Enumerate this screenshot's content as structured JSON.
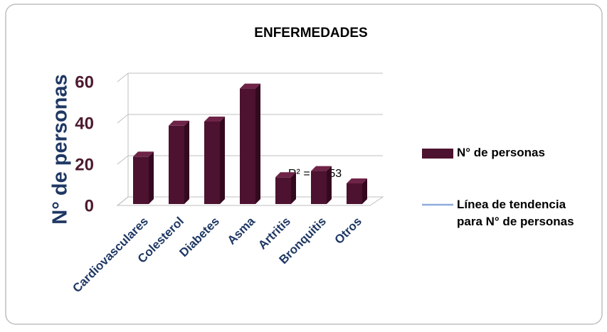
{
  "chart_data": {
    "type": "bar3d",
    "title": "ENFERMEDADES",
    "y_label": "N° de personas",
    "categories": [
      "Cardiovasculares",
      "Colesterol",
      "Diabetes",
      "Asma",
      "Artritis",
      "Bronquitis",
      "Otros"
    ],
    "series": [
      {
        "name": "N° de personas",
        "color": "#4d1230",
        "values": [
          23,
          38,
          40,
          56,
          13,
          16,
          10
        ]
      },
      {
        "name": "Línea de tendencia para N° de personas",
        "color": "#8eaadb",
        "kind": "trendline"
      }
    ],
    "annotation": "R² = 0.253",
    "ylim": [
      0,
      60
    ],
    "yticks": [
      0,
      20,
      40,
      60
    ],
    "grid": true,
    "legend": "right"
  }
}
